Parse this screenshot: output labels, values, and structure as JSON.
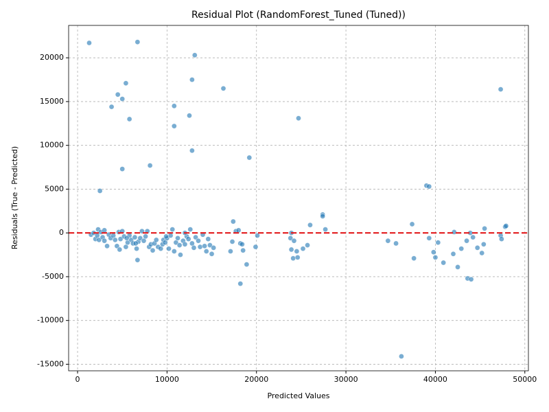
{
  "chart_data": {
    "type": "scatter",
    "title": "Residual Plot (RandomForest_Tuned (Tuned))",
    "x_label": "Predicted Values",
    "y_label": "Residuals (True - Predicted)",
    "color": "#1f77b4",
    "xlim": [
      -1000,
      50400
    ],
    "ylim": [
      -15750,
      23700
    ],
    "xticks": [
      0,
      10000,
      20000,
      30000,
      40000,
      50000
    ],
    "yticks": [
      -15000,
      -10000,
      -5000,
      0,
      5000,
      10000,
      15000,
      20000
    ],
    "grid": true,
    "reference_line": {
      "value": 0,
      "color": "#e31a1c"
    },
    "x": [
      1300,
      6700,
      13100,
      5400,
      12800,
      4500,
      5000,
      3800,
      10800,
      16300,
      12500,
      5800,
      10800,
      24700,
      12800,
      19200,
      8100,
      5000,
      2500,
      47300,
      39000,
      39300,
      17400,
      17700,
      18000,
      17300,
      17100,
      18200,
      18400,
      18500,
      18900,
      18200,
      19900,
      20100,
      23900,
      23800,
      24200,
      23900,
      24100,
      24500,
      24600,
      25200,
      25700,
      26000,
      27400,
      27400,
      27700,
      34700,
      35600,
      36200,
      37400,
      37600,
      39300,
      39800,
      40000,
      40300,
      40900,
      42000,
      42100,
      42500,
      42900,
      43500,
      43600,
      43900,
      44000,
      44200,
      44700,
      45200,
      45400,
      45500,
      47300,
      47400,
      47800,
      47900,
      1500,
      1800,
      2000,
      2200,
      2300,
      2400,
      2600,
      2800,
      3000,
      3000,
      3300,
      3500,
      3700,
      4000,
      4200,
      4400,
      4600,
      4700,
      4800,
      5000,
      5200,
      5400,
      5600,
      5800,
      6000,
      6200,
      6400,
      6600,
      6700,
      6800,
      7000,
      7200,
      7400,
      7600,
      7800,
      8000,
      8200,
      8400,
      8600,
      8800,
      9000,
      9300,
      9500,
      9600,
      9800,
      10000,
      10200,
      10400,
      10600,
      10800,
      11000,
      11200,
      11400,
      11500,
      11800,
      12000,
      12200,
      12400,
      12600,
      12800,
      13000,
      13200,
      13500,
      13700,
      14000,
      14200,
      14400,
      14600,
      14800,
      15000,
      15200,
      5500,
      6500,
      9900,
      12000
    ],
    "values": [
      21700,
      21800,
      20300,
      17100,
      17500,
      15800,
      15300,
      14400,
      14500,
      16500,
      13400,
      13000,
      12200,
      13100,
      9400,
      8600,
      7700,
      7300,
      4800,
      16400,
      5400,
      5300,
      1300,
      200,
      300,
      -1000,
      -2100,
      -1200,
      -1300,
      -2000,
      -3600,
      -5800,
      -1600,
      -300,
      0,
      -600,
      -900,
      -1900,
      -2900,
      -2100,
      -2800,
      -1800,
      -1400,
      900,
      2100,
      1900,
      400,
      -900,
      -1200,
      -14100,
      1000,
      -2900,
      -600,
      -2200,
      -2800,
      -1100,
      -3400,
      -2400,
      100,
      -3900,
      -1800,
      -900,
      -5200,
      0,
      -5300,
      -500,
      -1700,
      -2300,
      -1300,
      500,
      -300,
      -700,
      700,
      800,
      -200,
      0,
      -700,
      -300,
      400,
      -800,
      100,
      -500,
      -900,
      300,
      -1500,
      -200,
      -600,
      -300,
      -800,
      -1500,
      100,
      -1900,
      -700,
      200,
      -400,
      -1600,
      -1100,
      -300,
      -800,
      -1200,
      -500,
      -1800,
      -3100,
      -1000,
      -600,
      200,
      -900,
      -400,
      200,
      -1600,
      -1300,
      -2000,
      -1200,
      -800,
      -1600,
      -1800,
      -1300,
      -800,
      -1100,
      -600,
      -1800,
      -300,
      400,
      -2100,
      -1100,
      -600,
      -1400,
      -2500,
      -900,
      -1300,
      -400,
      -700,
      400,
      -1200,
      -1700,
      -500,
      -900,
      -1600,
      -200,
      -1500,
      -2100,
      -700,
      -1400,
      -2400,
      -1700,
      -600,
      -1200,
      -400,
      0
    ]
  }
}
